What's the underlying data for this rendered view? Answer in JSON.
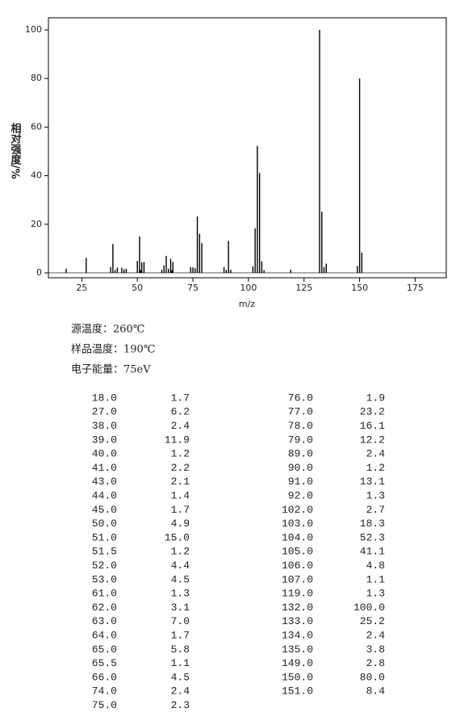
{
  "chart_data": {
    "type": "bar",
    "x_label": "m/z",
    "y_label": "相对强度/%",
    "x": [
      18,
      27,
      38,
      39,
      40,
      41,
      43,
      44,
      45,
      50,
      51,
      51.5,
      52,
      53,
      61,
      62,
      63,
      64,
      65,
      65.5,
      66,
      74,
      75,
      76,
      77,
      78,
      79,
      89,
      90,
      91,
      92,
      102,
      103,
      104,
      105,
      106,
      107,
      119,
      132,
      133,
      134,
      135,
      149,
      150,
      151
    ],
    "values": [
      1.7,
      6.2,
      2.4,
      11.9,
      1.2,
      2.2,
      2.1,
      1.4,
      1.7,
      4.9,
      15.0,
      1.2,
      4.4,
      4.5,
      1.3,
      3.1,
      7.0,
      1.7,
      5.8,
      1.1,
      4.5,
      2.4,
      2.3,
      1.9,
      23.2,
      16.1,
      12.2,
      2.4,
      1.2,
      13.1,
      1.3,
      2.7,
      18.3,
      52.3,
      41.1,
      4.8,
      1.1,
      1.3,
      100.0,
      25.2,
      2.4,
      3.8,
      2.8,
      80.0,
      8.4
    ],
    "color": "#000000",
    "xlim": [
      10,
      189
    ],
    "xticks": [
      25,
      50,
      75,
      100,
      125,
      150,
      175
    ],
    "ylim": [
      -2,
      105
    ],
    "yticks": [
      0,
      20,
      40,
      60,
      80,
      100
    ]
  },
  "conditions": [
    "源温度：260℃",
    "样品温度：190℃",
    "电子能量：75eV"
  ],
  "table": {
    "rows": [
      [
        "18.0",
        "1.7"
      ],
      [
        "27.0",
        "6.2"
      ],
      [
        "38.0",
        "2.4"
      ],
      [
        "39.0",
        "11.9"
      ],
      [
        "40.0",
        "1.2"
      ],
      [
        "41.0",
        "2.2"
      ],
      [
        "43.0",
        "2.1"
      ],
      [
        "44.0",
        "1.4"
      ],
      [
        "45.0",
        "1.7"
      ],
      [
        "50.0",
        "4.9"
      ],
      [
        "51.0",
        "15.0"
      ],
      [
        "51.5",
        "1.2"
      ],
      [
        "52.0",
        "4.4"
      ],
      [
        "53.0",
        "4.5"
      ],
      [
        "61.0",
        "1.3"
      ],
      [
        "62.0",
        "3.1"
      ],
      [
        "63.0",
        "7.0"
      ],
      [
        "64.0",
        "1.7"
      ],
      [
        "65.0",
        "5.8"
      ],
      [
        "65.5",
        "1.1"
      ],
      [
        "66.0",
        "4.5"
      ],
      [
        "74.0",
        "2.4"
      ],
      [
        "75.0",
        "2.3"
      ],
      [
        "76.0",
        "1.9"
      ],
      [
        "77.0",
        "23.2"
      ],
      [
        "78.0",
        "16.1"
      ],
      [
        "79.0",
        "12.2"
      ],
      [
        "89.0",
        "2.4"
      ],
      [
        "90.0",
        "1.2"
      ],
      [
        "91.0",
        "13.1"
      ],
      [
        "92.0",
        "1.3"
      ],
      [
        "102.0",
        "2.7"
      ],
      [
        "103.0",
        "18.3"
      ],
      [
        "104.0",
        "52.3"
      ],
      [
        "105.0",
        "41.1"
      ],
      [
        "106.0",
        "4.8"
      ],
      [
        "107.0",
        "1.1"
      ],
      [
        "119.0",
        "1.3"
      ],
      [
        "132.0",
        "100.0"
      ],
      [
        "133.0",
        "25.2"
      ],
      [
        "134.0",
        "2.4"
      ],
      [
        "135.0",
        "3.8"
      ],
      [
        "149.0",
        "2.8"
      ],
      [
        "150.0",
        "80.0"
      ],
      [
        "151.0",
        "8.4"
      ]
    ]
  }
}
